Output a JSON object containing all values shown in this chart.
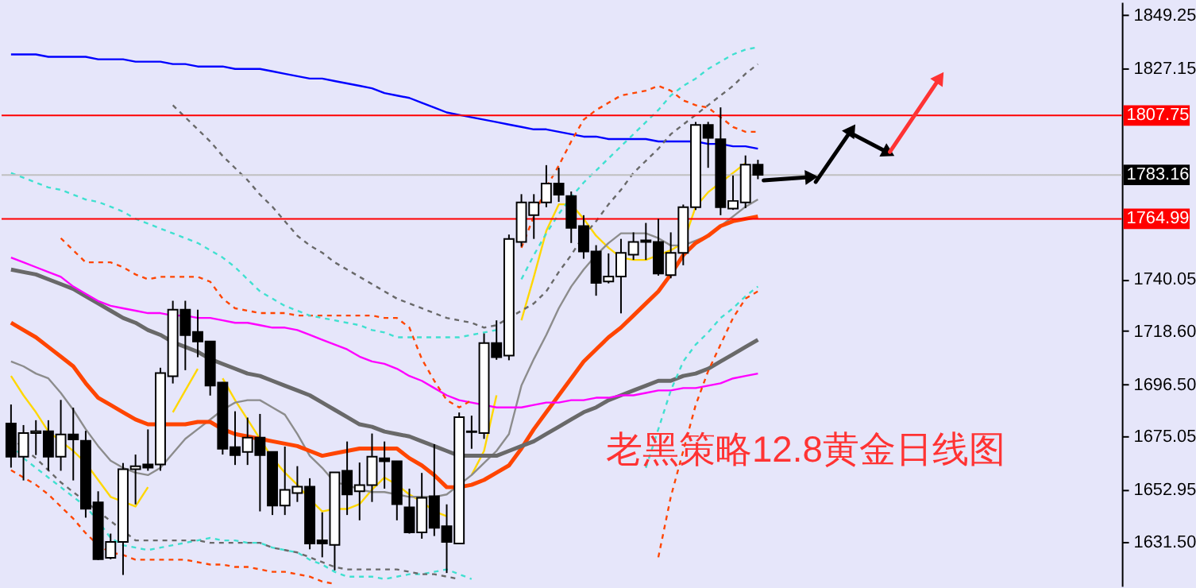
{
  "chart_data": {
    "type": "candlestick",
    "title": "老黑策略12.8黄金日线图",
    "categories": [
      null,
      null,
      null,
      null,
      null,
      null,
      null,
      null,
      null,
      null,
      null,
      null,
      null,
      null,
      null,
      null,
      null,
      null,
      null,
      null,
      null,
      null,
      null,
      null,
      null,
      null,
      null,
      null,
      null,
      null,
      null,
      null,
      null,
      null,
      null,
      null,
      null,
      null,
      null,
      null,
      null,
      null,
      null,
      null,
      null,
      null,
      null,
      null,
      null,
      null,
      null,
      null,
      null,
      null,
      null,
      null,
      null,
      null,
      null,
      null,
      null
    ],
    "ohlc": [
      [
        1680.3,
        1688.2,
        1662.1,
        1666.6
      ],
      [
        1666.6,
        1679.7,
        1656.8,
        1676.4
      ],
      [
        1676.4,
        1681.7,
        1667.3,
        1677.1
      ],
      [
        1677.1,
        1681.7,
        1660.9,
        1666.6
      ],
      [
        1666.6,
        1690.1,
        1660.8,
        1675.8
      ],
      [
        1675.8,
        1686.9,
        1656.8,
        1673.8
      ],
      [
        1673.2,
        1677.3,
        1641.4,
        1645.1
      ],
      [
        1647.7,
        1652.3,
        1623.9,
        1624.2
      ],
      [
        1624.8,
        1634.8,
        1624.2,
        1631.4
      ],
      [
        1631.4,
        1664.0,
        1617.7,
        1661.4
      ],
      [
        1661.4,
        1667.5,
        1646.9,
        1662.7
      ],
      [
        1663.4,
        1677.9,
        1660.8,
        1662.1
      ],
      [
        1663.4,
        1703.4,
        1660.8,
        1701.2
      ],
      [
        1699.9,
        1731.1,
        1696.9,
        1727.4
      ],
      [
        1727.4,
        1731.1,
        1702.4,
        1716.9
      ],
      [
        1718.2,
        1727.4,
        1707.8,
        1714.3
      ],
      [
        1714.3,
        1714.5,
        1691.9,
        1696.0
      ],
      [
        1697.3,
        1697.5,
        1667.5,
        1669.9
      ],
      [
        1670.6,
        1685.4,
        1663.2,
        1667.3
      ],
      [
        1668.6,
        1682.8,
        1663.2,
        1674.5
      ],
      [
        1674.5,
        1684.3,
        1644.0,
        1667.3
      ],
      [
        1668.6,
        1668.8,
        1642.5,
        1646.4
      ],
      [
        1646.4,
        1670.8,
        1642.5,
        1652.9
      ],
      [
        1651.6,
        1662.7,
        1647.9,
        1654.2
      ],
      [
        1654.2,
        1657.7,
        1628.3,
        1630.7
      ],
      [
        1632.0,
        1643.6,
        1625.0,
        1630.7
      ],
      [
        1630.1,
        1660.1,
        1619.6,
        1660.1
      ],
      [
        1660.8,
        1672.9,
        1642.5,
        1651.0
      ],
      [
        1652.3,
        1664.2,
        1640.3,
        1654.9
      ],
      [
        1654.9,
        1676.2,
        1647.9,
        1666.6
      ],
      [
        1666.0,
        1672.9,
        1653.4,
        1664.7
      ],
      [
        1664.7,
        1664.9,
        1640.3,
        1647.0
      ],
      [
        1645.7,
        1653.4,
        1634.8,
        1635.3
      ],
      [
        1635.3,
        1659.9,
        1632.7,
        1649.6
      ],
      [
        1650.3,
        1671.8,
        1633.8,
        1637.2
      ],
      [
        1637.9,
        1646.9,
        1618.5,
        1631.4
      ],
      [
        1630.7,
        1684.9,
        1630.5,
        1683.0
      ],
      [
        1677.1,
        1683.6,
        1669.9,
        1676.8
      ],
      [
        1676.4,
        1717.6,
        1674.0,
        1713.6
      ],
      [
        1713.6,
        1723.0,
        1706.7,
        1707.8
      ],
      [
        1708.4,
        1758.5,
        1706.5,
        1756.7
      ],
      [
        1755.4,
        1775.2,
        1753.5,
        1771.8
      ],
      [
        1766.5,
        1775.2,
        1756.7,
        1771.8
      ],
      [
        1771.8,
        1787.2,
        1769.8,
        1779.6
      ],
      [
        1779.6,
        1786.1,
        1772.0,
        1775.0
      ],
      [
        1774.4,
        1776.3,
        1755.0,
        1761.3
      ],
      [
        1762.0,
        1766.5,
        1748.5,
        1751.5
      ],
      [
        1751.5,
        1754.1,
        1733.2,
        1738.5
      ],
      [
        1739.1,
        1750.7,
        1738.3,
        1741.1
      ],
      [
        1741.1,
        1756.7,
        1725.9,
        1750.9
      ],
      [
        1750.2,
        1759.4,
        1748.0,
        1755.4
      ],
      [
        1756.1,
        1763.3,
        1748.0,
        1755.4
      ],
      [
        1755.4,
        1765.0,
        1741.5,
        1742.4
      ],
      [
        1741.7,
        1759.4,
        1740.4,
        1750.9
      ],
      [
        1750.9,
        1770.9,
        1745.8,
        1769.8
      ],
      [
        1769.8,
        1805.1,
        1768.7,
        1803.8
      ],
      [
        1803.8,
        1805.1,
        1786.1,
        1798.5
      ],
      [
        1797.9,
        1811.1,
        1766.5,
        1769.8
      ],
      [
        1769.2,
        1782.9,
        1768.7,
        1772.4
      ],
      [
        1771.8,
        1791.2,
        1769.4,
        1787.4
      ],
      [
        1787.4,
        1789.4,
        1781.4,
        1783.2
      ]
    ],
    "series": [
      {
        "type": "line",
        "color": "#ffd700",
        "values": [
          1700,
          1692,
          1685,
          1677,
          1673,
          1669,
          1664,
          1657,
          1650,
          1648,
          1646,
          1654,
          null,
          1685,
          1694,
          1703,
          null,
          1699,
          1690,
          1682,
          1674,
          1666,
          1660,
          1655,
          1649,
          1644,
          1645,
          1645,
          1647,
          1653,
          1658,
          1655,
          1651,
          1648,
          1644,
          1642,
          null,
          1659,
          1669,
          1692,
          null,
          1723,
          1741,
          1760,
          1771,
          1771,
          1765,
          1758,
          1753,
          1749,
          1748,
          1748,
          1750,
          1752,
          1755,
          1770,
          1776,
          1780,
          1784,
          1788,
          null
        ]
      },
      {
        "type": "line",
        "color": "#8c8c8c",
        "values": [
          1706,
          1704,
          1701,
          1699,
          1693,
          1686,
          1678,
          1671,
          1665,
          1662,
          1660,
          1659,
          1662,
          1668,
          1674,
          1678,
          1682,
          1686,
          1689,
          1690,
          1690,
          1687,
          1684,
          1676,
          1667,
          1662,
          1656,
          1655,
          1653,
          1652,
          1652,
          1651,
          1650,
          1650,
          1650,
          1651,
          1655,
          1659,
          1664,
          1669,
          1676,
          1696,
          1707,
          1717,
          1728,
          1737,
          1744,
          1750,
          1755,
          1759,
          1759,
          1759,
          1757,
          1754,
          1754,
          1756,
          1758,
          1762,
          1766,
          1770,
          1773
        ]
      },
      {
        "type": "line",
        "color": "#ff4500",
        "values": [
          1722,
          1719,
          1716,
          1712,
          1708,
          1704,
          1697,
          1691,
          1688,
          1685,
          1682,
          1680,
          1680,
          1680,
          1680,
          1681,
          1681,
          1678,
          1676,
          1675,
          1674,
          1673,
          1672,
          1671,
          1669,
          1667,
          1668,
          1669,
          1670,
          1670,
          1670,
          1670,
          1666,
          1663,
          1659,
          1654,
          1654,
          1655,
          1657,
          1660,
          1663,
          1670,
          1678,
          1685,
          1692,
          1699,
          1706,
          1711,
          1716,
          1720,
          1725,
          1730,
          1735,
          1742,
          1750,
          1755,
          1758,
          1762,
          1764,
          1765,
          1766
        ]
      },
      {
        "type": "line",
        "color": "#696969",
        "values": [
          1744,
          1743,
          1742,
          1740,
          1738,
          1736,
          1733,
          1730,
          1727,
          1724,
          1722,
          1719,
          1717,
          1714,
          1712,
          1710,
          1707,
          1705,
          1703,
          1701,
          1700,
          1698,
          1696,
          1694,
          1692,
          1689,
          1686,
          1683,
          1680,
          1679,
          1677,
          1676,
          1675,
          1673,
          1671,
          1669,
          1667,
          1667,
          1667,
          1667,
          1669,
          1671,
          1673,
          1676,
          1679,
          1682,
          1685,
          1687,
          1690,
          1692,
          1694,
          1696,
          1698,
          1698,
          1700,
          1701,
          1703,
          1706,
          1709,
          1712,
          1715
        ]
      },
      {
        "type": "line",
        "color": "#ff00ff",
        "values": [
          1749,
          1747,
          1745,
          1743,
          1741,
          1737,
          1734,
          1731,
          1729,
          1728,
          1727,
          1726,
          1726,
          1725,
          1725,
          1724,
          1724,
          1723,
          1722,
          1722,
          1721,
          1720,
          1720,
          1719,
          1717,
          1715,
          1713,
          1711,
          1708,
          1706,
          1705,
          1703,
          1700,
          1698,
          1695,
          1692,
          1690,
          1689,
          1688,
          1687,
          1687,
          1687,
          1688,
          1689,
          1689,
          1690,
          1690,
          1691,
          1691,
          1692,
          1692,
          1693,
          1694,
          1694,
          1695,
          1695,
          1696,
          1697,
          1699,
          1700,
          1701
        ]
      },
      {
        "type": "line",
        "color": "#0000ff",
        "values": [
          1833,
          1833,
          1833,
          1832,
          1832,
          1832,
          1832,
          1831,
          1831,
          1831,
          1830,
          1830,
          1830,
          1829,
          1829,
          1828,
          1828,
          1828,
          1827,
          1827,
          1827,
          1826,
          1825,
          1824,
          1823,
          1823,
          1822,
          1821,
          1820,
          1819,
          1817,
          1816,
          1815,
          1813,
          1811,
          1809,
          1808,
          1807,
          1806,
          1805,
          1804,
          1803,
          1802,
          1802,
          1801,
          1800,
          1799,
          1799,
          1798,
          1798,
          1798,
          1798,
          1797,
          1797,
          1797,
          1797,
          1796,
          1796,
          1795,
          1795,
          1794
        ]
      },
      {
        "type": "line",
        "color": "#ff4500",
        "line_style": "dashed",
        "values": [
          null,
          null,
          null,
          null,
          1757,
          1752,
          1747,
          1747,
          1747,
          1745,
          1742,
          1740,
          1741,
          1741,
          1741,
          1741,
          1739,
          1732,
          1728,
          1727,
          1726,
          1726,
          1726,
          1725,
          1725,
          1725,
          1725,
          1725,
          1725,
          1725,
          1724,
          1724,
          1720,
          1707,
          1698,
          1690,
          1687,
          1690,
          null,
          null,
          null,
          1753,
          1766,
          1778,
          1787,
          1797,
          1806,
          1810,
          1813,
          1816,
          1817,
          1818,
          1820,
          1818,
          1814,
          1812,
          1811,
          1807,
          1803,
          1801,
          1801
        ]
      },
      {
        "type": "line",
        "color": "#ff4500",
        "line_style": "dashed",
        "values": [
          1661,
          1658,
          1655,
          1651,
          1646,
          1641,
          1635,
          1630,
          1627,
          1626,
          1624,
          1624,
          1624,
          1624,
          1624,
          1623,
          1622,
          1622,
          1621,
          1621,
          1620,
          1619,
          1619,
          1618,
          1617,
          1615,
          1614,
          null,
          null,
          null,
          null,
          null,
          null,
          null,
          null,
          null,
          null,
          null,
          null,
          null,
          null,
          null,
          null,
          null,
          null,
          null,
          null,
          null,
          null,
          null,
          null,
          null,
          1625,
          1650,
          1669,
          1688,
          1702,
          1713,
          1724,
          1732,
          1735
        ]
      },
      {
        "type": "line",
        "color": "#40e0d0",
        "line_style": "dashed",
        "values": [
          1784,
          1782,
          1780,
          1778,
          1777,
          1775,
          1773,
          1772,
          1770,
          1768,
          1765,
          1763,
          1761,
          1759,
          1757,
          1755,
          1752,
          1749,
          1745,
          1740,
          1735,
          1732,
          1729,
          1727,
          1725,
          1724,
          1723,
          1722,
          1721,
          1719,
          1718,
          1716,
          1716,
          1716,
          1716,
          1716,
          1716,
          1717,
          1718,
          1719,
          null,
          1740,
          1750,
          1759,
          1767,
          1774,
          1780,
          1785,
          1790,
          1795,
          1800,
          1805,
          1810,
          1816,
          1820,
          1823,
          1827,
          1830,
          1833,
          1835,
          1836
        ]
      },
      {
        "type": "line",
        "color": "#40e0d0",
        "line_style": "dashed",
        "values": [
          1672,
          1666,
          1662,
          1658,
          1654,
          1650,
          1646,
          1640,
          1633,
          1630,
          1629,
          1628,
          1629,
          1630,
          1631,
          1632,
          1633,
          1632,
          1632,
          1631,
          1631,
          1629,
          1628,
          1627,
          1624,
          1622,
          1619,
          1617,
          1617,
          1617,
          1616,
          1617,
          1618,
          1618,
          1619,
          1620,
          1618,
          1616,
          null,
          null,
          null,
          null,
          null,
          null,
          null,
          null,
          null,
          null,
          null,
          null,
          null,
          1662,
          1678,
          1694,
          1706,
          1713,
          1718,
          1724,
          1728,
          1733,
          1737
        ]
      },
      {
        "type": "line",
        "color": "#696969",
        "line_style": "dashed",
        "values": [
          null,
          null,
          null,
          null,
          null,
          null,
          null,
          null,
          null,
          null,
          null,
          null,
          null,
          1812,
          1807,
          1802,
          1797,
          1791,
          1786,
          1781,
          1775,
          1770,
          1764,
          1758,
          1754,
          1751,
          1747,
          1744,
          1741,
          1738,
          1735,
          1732,
          1730,
          1728,
          1726,
          1724,
          1723,
          1722,
          1720,
          1721,
          1724,
          1727,
          1730,
          1735,
          1743,
          1750,
          1758,
          1764,
          1771,
          1777,
          1784,
          1789,
          1794,
          1800,
          1804,
          1808,
          1812,
          1816,
          1820,
          1825,
          1829
        ]
      },
      {
        "type": "line",
        "color": "#696969",
        "line_style": "dashed",
        "values": [
          1675,
          1670,
          1666,
          1661,
          1656,
          1652,
          1648,
          1644,
          1640,
          1636,
          1632,
          1632,
          1632,
          1632,
          1632,
          1632,
          1631,
          1631,
          1631,
          1631,
          1631,
          1629,
          1628,
          1627,
          1625,
          1623,
          1621,
          1620,
          1620,
          1620,
          1620,
          1620,
          1619,
          1618,
          1618,
          1617,
          1616,
          null,
          null,
          null,
          null,
          null,
          null,
          null,
          null,
          null,
          null,
          null,
          null,
          null,
          null,
          null,
          null,
          null,
          null,
          null,
          null,
          null,
          null,
          null,
          null
        ]
      }
    ],
    "ref_lines": [
      {
        "axis": "y",
        "value": 1807.75,
        "label": "1807.75",
        "color": "#ff0000"
      },
      {
        "axis": "y",
        "value": 1783.16,
        "label": "1783.16",
        "color": "#c0c0c0"
      },
      {
        "axis": "y",
        "value": 1764.99,
        "label": "1764.99",
        "color": "#ff0000"
      }
    ],
    "ylim": [
      1613.1,
      1854.7
    ],
    "yticks": [
      {
        "value": 1849.25,
        "label": "1849.25"
      },
      {
        "value": 1827.15,
        "label": "1827.15"
      },
      {
        "value": 1740.05,
        "label": "1740.05"
      },
      {
        "value": 1718.6,
        "label": "1718.60"
      },
      {
        "value": 1696.5,
        "label": "1696.50"
      },
      {
        "value": 1675.05,
        "label": "1675.05"
      },
      {
        "value": 1652.95,
        "label": "1652.95"
      },
      {
        "value": 1631.5,
        "label": "1631.50"
      }
    ],
    "tick_labels": "y",
    "grid": false
  }
}
